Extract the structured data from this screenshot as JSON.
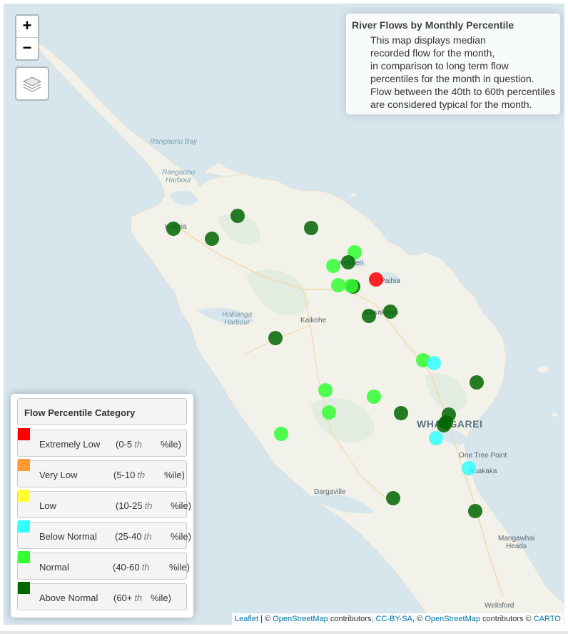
{
  "info": {
    "title": "River Flows by Monthly Percentile",
    "lines": [
      "This map displays median",
      "recorded flow for the month,",
      "in comparison to long term flow",
      "percentiles for the month in question.",
      "Flow between the 40th to 60th percentiles",
      "are considered typical for the month."
    ]
  },
  "zoom": {
    "in_label": "+",
    "out_label": "−"
  },
  "legend": {
    "title": "Flow Percentile Category",
    "suffix": "%ile)",
    "items": [
      {
        "label": "Extremely Low",
        "range": "(0-5",
        "th": "th",
        "color": "#ff0000"
      },
      {
        "label": "Very Low",
        "range": "(5-10",
        "th": "th",
        "color": "#ff9933"
      },
      {
        "label": "Low",
        "range": "(10-25",
        "th": "th",
        "color": "#ffff33"
      },
      {
        "label": "Below Normal",
        "range": "(25-40",
        "th": "th",
        "color": "#33ffff"
      },
      {
        "label": "Normal",
        "range": "(40-60",
        "th": "th",
        "color": "#33ff33"
      },
      {
        "label": "Above Normal",
        "range": "(60+",
        "th": "th",
        "color": "#006600"
      }
    ]
  },
  "places": {
    "rangaunu_bay": "Rangaunu Bay",
    "rangaunu_harbour": [
      "Rangaunu",
      "Harbour"
    ],
    "kaitaia": "Kaitaia",
    "kerikeri": "Kerikeri",
    "paihia": "Paihia",
    "kawakawa": "Kawakawa",
    "kaikohe": "Kaikohe",
    "hokianga_harbour": [
      "Hokianga",
      "Harbour"
    ],
    "whangarei": "WHANGAREI",
    "one_tree_point": "One Tree Point",
    "ruakaka": "Ruakaka",
    "dargaville": "Dargaville",
    "mangawhai_heads": [
      "Mangawhai",
      "Heads"
    ],
    "wellsford": "Wellsford"
  },
  "attribution": {
    "leaflet": "Leaflet",
    "sep1": " | © ",
    "osm1": "OpenStreetMap",
    "contrib1": " contributors, ",
    "ccbysa": "CC-BY-SA",
    "sep2": ", © ",
    "osm2": "OpenStreetMap",
    "contrib2": " contributors © ",
    "carto": "CARTO"
  },
  "gauges": [
    {
      "category": "Above Normal",
      "color": "#006600"
    },
    {
      "category": "Above Normal",
      "color": "#006600"
    },
    {
      "category": "Above Normal",
      "color": "#006600"
    },
    {
      "category": "Above Normal",
      "color": "#006600"
    },
    {
      "category": "Normal",
      "color": "#33ff33"
    },
    {
      "category": "Above Normal",
      "color": "#006600"
    },
    {
      "category": "Normal",
      "color": "#33ff33"
    },
    {
      "category": "Normal",
      "color": "#33ff33"
    },
    {
      "category": "Above Normal",
      "color": "#006600"
    },
    {
      "category": "Normal",
      "color": "#33ff33"
    },
    {
      "category": "Extremely Low",
      "color": "#ff0000"
    },
    {
      "category": "Above Normal",
      "color": "#006600"
    },
    {
      "category": "Above Normal",
      "color": "#006600"
    },
    {
      "category": "Above Normal",
      "color": "#006600"
    },
    {
      "category": "Normal",
      "color": "#33ff33"
    },
    {
      "category": "Below Normal",
      "color": "#33ffff"
    },
    {
      "category": "Above Normal",
      "color": "#006600"
    },
    {
      "category": "Normal",
      "color": "#33ff33"
    },
    {
      "category": "Normal",
      "color": "#33ff33"
    },
    {
      "category": "Normal",
      "color": "#33ff33"
    },
    {
      "category": "Above Normal",
      "color": "#006600"
    },
    {
      "category": "Above Normal",
      "color": "#006600"
    },
    {
      "category": "Above Normal",
      "color": "#006600"
    },
    {
      "category": "Above Normal",
      "color": "#006600"
    },
    {
      "category": "Normal",
      "color": "#33ff33"
    },
    {
      "category": "Below Normal",
      "color": "#33ffff"
    },
    {
      "category": "Below Normal",
      "color": "#33ffff"
    },
    {
      "category": "Above Normal",
      "color": "#006600"
    },
    {
      "category": "Above Normal",
      "color": "#006600"
    }
  ]
}
